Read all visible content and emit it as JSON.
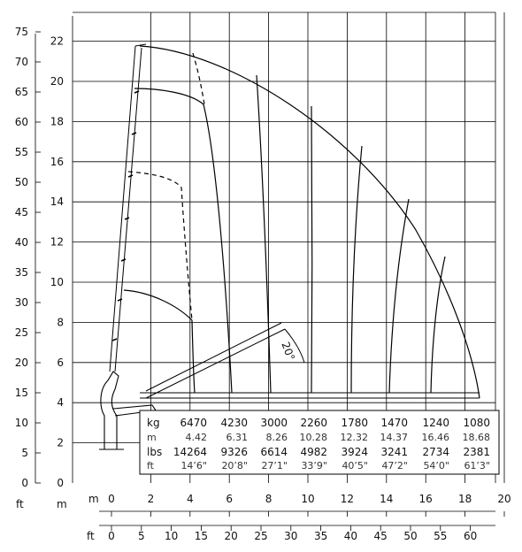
{
  "units": {
    "ft_left": "ft",
    "m_left": "m",
    "m_bottom": "m",
    "ft_bottom": "ft"
  },
  "axes": {
    "m_x_ticks": [
      "0",
      "2",
      "4",
      "6",
      "8",
      "10",
      "12",
      "14",
      "16",
      "18",
      "20"
    ],
    "m_y_ticks": [
      "2",
      "4",
      "6",
      "8",
      "10",
      "12",
      "14",
      "16",
      "18",
      "20",
      "22"
    ],
    "ft_y_ticks": [
      "0",
      "5",
      "10",
      "15",
      "20",
      "25",
      "30",
      "35",
      "40",
      "45",
      "50",
      "55",
      "60",
      "65",
      "70",
      "75"
    ],
    "ft_x_ticks": [
      "0",
      "5",
      "10",
      "15",
      "20",
      "25",
      "30",
      "35",
      "40",
      "45",
      "50",
      "55",
      "60"
    ]
  },
  "angle_label": "20°",
  "table": {
    "row_labels": [
      "kg",
      "m",
      "lbs",
      "ft"
    ],
    "kg": [
      "6470",
      "4230",
      "3000",
      "2260",
      "1780",
      "1470",
      "1240",
      "1080"
    ],
    "m": [
      "4.42",
      "6.31",
      "8.26",
      "10.28",
      "12.32",
      "14.37",
      "16.46",
      "18.68"
    ],
    "lbs": [
      "14264",
      "9326",
      "6614",
      "4982",
      "3924",
      "3241",
      "2734",
      "2381"
    ],
    "ft": [
      "14’6\"",
      "20’8\"",
      "27’1\"",
      "33’9\"",
      "40’5\"",
      "47’2\"",
      "54’0\"",
      "61’3\""
    ]
  }
}
